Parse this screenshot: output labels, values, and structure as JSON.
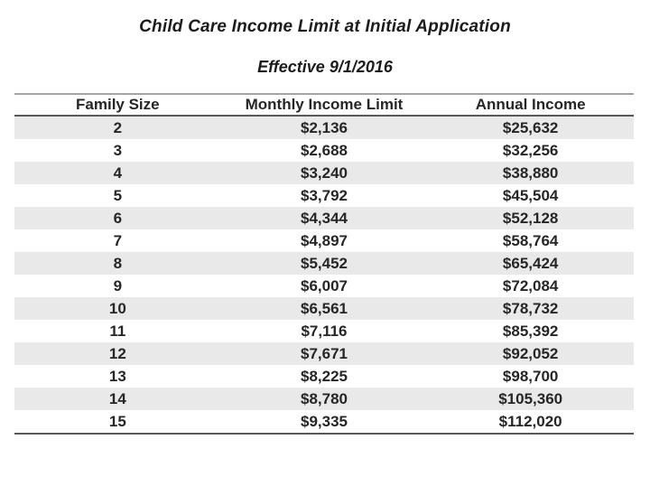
{
  "page": {
    "title": "Child Care Income Limit at Initial Application",
    "subtitle": "Effective 9/1/2016"
  },
  "table": {
    "columns": [
      "Family Size",
      "Monthly Income Limit",
      "Annual Income"
    ],
    "rows": [
      [
        "2",
        "$2,136",
        "$25,632"
      ],
      [
        "3",
        "$2,688",
        "$32,256"
      ],
      [
        "4",
        "$3,240",
        "$38,880"
      ],
      [
        "5",
        "$3,792",
        "$45,504"
      ],
      [
        "6",
        "$4,344",
        "$52,128"
      ],
      [
        "7",
        "$4,897",
        "$58,764"
      ],
      [
        "8",
        "$5,452",
        "$65,424"
      ],
      [
        "9",
        "$6,007",
        "$72,084"
      ],
      [
        "10",
        "$6,561",
        "$78,732"
      ],
      [
        "11",
        "$7,116",
        "$85,392"
      ],
      [
        "12",
        "$7,671",
        "$92,052"
      ],
      [
        "13",
        "$8,225",
        "$98,700"
      ],
      [
        "14",
        "$8,780",
        "$105,360"
      ],
      [
        "15",
        "$9,335",
        "$112,020"
      ]
    ],
    "colors": {
      "row_shade": "#e9e9e9",
      "rule_top": "#a3a3a3",
      "rule_dark": "#595959",
      "text": "#262626"
    }
  }
}
